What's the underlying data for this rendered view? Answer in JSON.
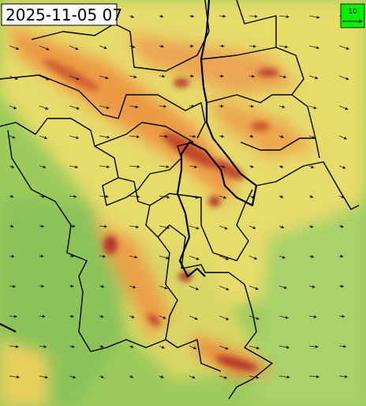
{
  "timestamp": "2025-11-05 07",
  "wind_legend": {
    "label": "10"
  }
}
